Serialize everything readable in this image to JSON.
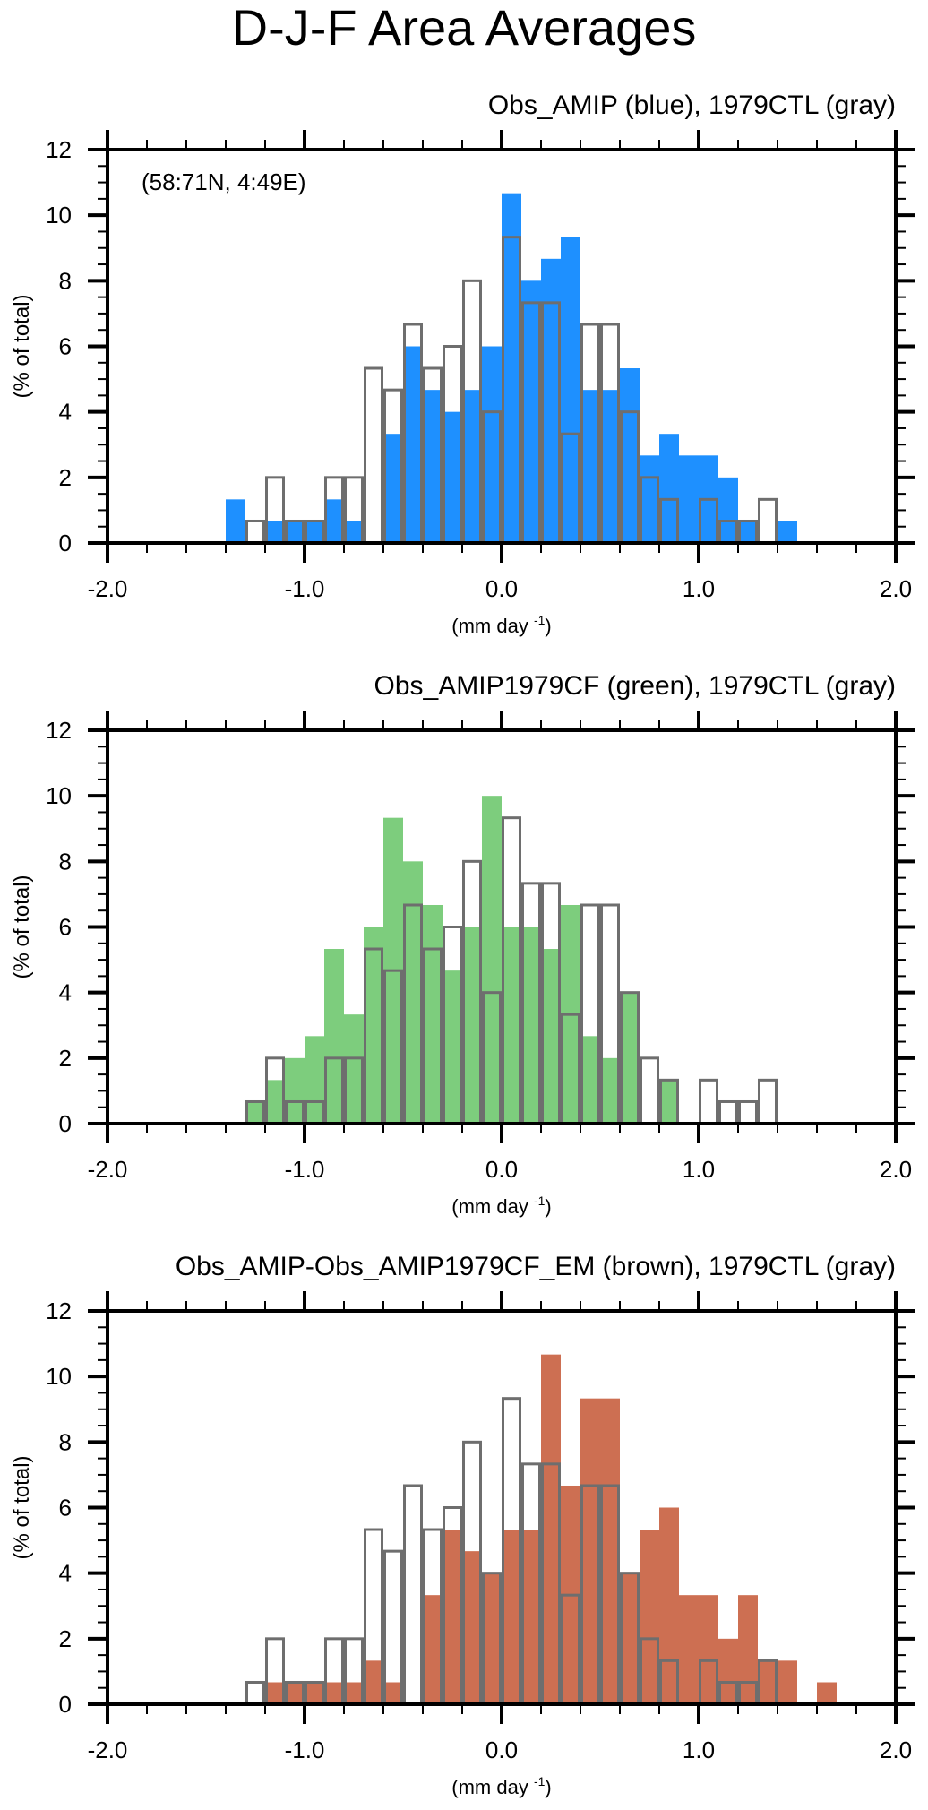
{
  "figure": {
    "title": "D-J-F Area Averages"
  },
  "colors": {
    "ctl_outline": "#6e6e6e",
    "blue": "#1e90ff",
    "green": "#7dcd7d",
    "brown": "#cd6f52",
    "axis": "#000000"
  },
  "chart_data": [
    {
      "type": "bar",
      "subtitle": "Obs_AMIP (blue), 1979CTL (gray)",
      "annotation": "(58:71N, 4:49E)",
      "xlabel": "(mm day",
      "xlabel_sup": "-1",
      "xlabel_close": ")",
      "ylabel": "(% of total)",
      "xlim": [
        -2.0,
        2.0
      ],
      "ylim": [
        0,
        12
      ],
      "xticks": [
        "-2.0",
        "-1.0",
        "0.0",
        "1.0",
        "2.0"
      ],
      "yticks": [
        "0",
        "2",
        "4",
        "6",
        "8",
        "10",
        "12"
      ],
      "bin_width": 0.1,
      "series": [
        {
          "name": "Obs_AMIP",
          "style": "filled",
          "color_key": "blue",
          "bin_starts": [
            -1.4,
            -1.3,
            -1.2,
            -1.1,
            -1.0,
            -0.9,
            -0.8,
            -0.7,
            -0.6,
            -0.5,
            -0.4,
            -0.3,
            -0.2,
            -0.1,
            0.0,
            0.1,
            0.2,
            0.3,
            0.4,
            0.5,
            0.6,
            0.7,
            0.8,
            0.9,
            1.0,
            1.1,
            1.2,
            1.3,
            1.4
          ],
          "values": [
            1.33,
            0,
            0.67,
            0.67,
            0.67,
            1.33,
            0.67,
            0,
            3.33,
            6.0,
            4.67,
            4.0,
            4.67,
            6.0,
            10.67,
            8.0,
            8.67,
            9.33,
            4.67,
            4.67,
            5.33,
            2.67,
            3.33,
            2.67,
            2.67,
            2.0,
            0.67,
            0,
            0.67
          ]
        },
        {
          "name": "1979CTL",
          "style": "outline",
          "color_key": "ctl_outline",
          "bin_starts": [
            -1.3,
            -1.2,
            -1.1,
            -1.0,
            -0.9,
            -0.8,
            -0.7,
            -0.6,
            -0.5,
            -0.4,
            -0.3,
            -0.2,
            -0.1,
            0.0,
            0.1,
            0.2,
            0.3,
            0.4,
            0.5,
            0.6,
            0.7,
            0.8,
            0.9,
            1.0,
            1.1,
            1.2,
            1.3
          ],
          "values": [
            0.67,
            2.0,
            0.67,
            0.67,
            2.0,
            2.0,
            5.33,
            4.67,
            6.67,
            5.33,
            6.0,
            8.0,
            4.0,
            9.33,
            7.33,
            7.33,
            3.33,
            6.67,
            6.67,
            4.0,
            2.0,
            1.33,
            0,
            1.33,
            0.67,
            0.67,
            1.33
          ]
        }
      ]
    },
    {
      "type": "bar",
      "subtitle": "Obs_AMIP1979CF (green), 1979CTL (gray)",
      "annotation": "",
      "xlabel": "(mm day",
      "xlabel_sup": "-1",
      "xlabel_close": ")",
      "ylabel": "(% of total)",
      "xlim": [
        -2.0,
        2.0
      ],
      "ylim": [
        0,
        12
      ],
      "xticks": [
        "-2.0",
        "-1.0",
        "0.0",
        "1.0",
        "2.0"
      ],
      "yticks": [
        "0",
        "2",
        "4",
        "6",
        "8",
        "10",
        "12"
      ],
      "bin_width": 0.1,
      "series": [
        {
          "name": "Obs_AMIP1979CF",
          "style": "filled",
          "color_key": "green",
          "bin_starts": [
            -1.3,
            -1.2,
            -1.1,
            -1.0,
            -0.9,
            -0.8,
            -0.7,
            -0.6,
            -0.5,
            -0.4,
            -0.3,
            -0.2,
            -0.1,
            0.0,
            0.1,
            0.2,
            0.3,
            0.4,
            0.5,
            0.6,
            0.7,
            0.8
          ],
          "values": [
            0.67,
            1.33,
            2.0,
            2.67,
            5.33,
            3.33,
            6.0,
            9.33,
            8.0,
            6.67,
            4.67,
            6.0,
            10.0,
            6.0,
            6.0,
            5.33,
            6.67,
            2.67,
            2.0,
            4.0,
            0,
            1.33
          ]
        },
        {
          "name": "1979CTL",
          "style": "outline",
          "color_key": "ctl_outline",
          "bin_starts": [
            -1.3,
            -1.2,
            -1.1,
            -1.0,
            -0.9,
            -0.8,
            -0.7,
            -0.6,
            -0.5,
            -0.4,
            -0.3,
            -0.2,
            -0.1,
            0.0,
            0.1,
            0.2,
            0.3,
            0.4,
            0.5,
            0.6,
            0.7,
            0.8,
            0.9,
            1.0,
            1.1,
            1.2,
            1.3
          ],
          "values": [
            0.67,
            2.0,
            0.67,
            0.67,
            2.0,
            2.0,
            5.33,
            4.67,
            6.67,
            5.33,
            6.0,
            8.0,
            4.0,
            9.33,
            7.33,
            7.33,
            3.33,
            6.67,
            6.67,
            4.0,
            2.0,
            1.33,
            0,
            1.33,
            0.67,
            0.67,
            1.33
          ]
        }
      ]
    },
    {
      "type": "bar",
      "subtitle": "Obs_AMIP-Obs_AMIP1979CF_EM (brown), 1979CTL (gray)",
      "annotation": "",
      "xlabel": "(mm day",
      "xlabel_sup": "-1",
      "xlabel_close": ")",
      "ylabel": "(% of total)",
      "xlim": [
        -2.0,
        2.0
      ],
      "ylim": [
        0,
        12
      ],
      "xticks": [
        "-2.0",
        "-1.0",
        "0.0",
        "1.0",
        "2.0"
      ],
      "yticks": [
        "0",
        "2",
        "4",
        "6",
        "8",
        "10",
        "12"
      ],
      "bin_width": 0.1,
      "series": [
        {
          "name": "Obs_AMIP-Obs_AMIP1979CF_EM",
          "style": "filled",
          "color_key": "brown",
          "bin_starts": [
            -1.2,
            -1.1,
            -1.0,
            -0.9,
            -0.8,
            -0.7,
            -0.6,
            -0.5,
            -0.4,
            -0.3,
            -0.2,
            -0.1,
            0.0,
            0.1,
            0.2,
            0.3,
            0.4,
            0.5,
            0.6,
            0.7,
            0.8,
            0.9,
            1.0,
            1.1,
            1.2,
            1.3,
            1.4,
            1.5,
            1.6
          ],
          "values": [
            0.67,
            0.67,
            0.67,
            0.67,
            0.67,
            1.33,
            0.67,
            0,
            3.33,
            5.33,
            4.67,
            4.0,
            5.33,
            5.33,
            10.67,
            6.67,
            9.33,
            9.33,
            4.0,
            5.33,
            6.0,
            3.33,
            3.33,
            2.0,
            3.33,
            1.33,
            1.33,
            0,
            0.67
          ]
        },
        {
          "name": "1979CTL",
          "style": "outline",
          "color_key": "ctl_outline",
          "bin_starts": [
            -1.3,
            -1.2,
            -1.1,
            -1.0,
            -0.9,
            -0.8,
            -0.7,
            -0.6,
            -0.5,
            -0.4,
            -0.3,
            -0.2,
            -0.1,
            0.0,
            0.1,
            0.2,
            0.3,
            0.4,
            0.5,
            0.6,
            0.7,
            0.8,
            0.9,
            1.0,
            1.1,
            1.2,
            1.3
          ],
          "values": [
            0.67,
            2.0,
            0.67,
            0.67,
            2.0,
            2.0,
            5.33,
            4.67,
            6.67,
            5.33,
            6.0,
            8.0,
            4.0,
            9.33,
            7.33,
            7.33,
            3.33,
            6.67,
            6.67,
            4.0,
            2.0,
            1.33,
            0,
            1.33,
            0.67,
            0.67,
            1.33
          ]
        }
      ]
    }
  ]
}
